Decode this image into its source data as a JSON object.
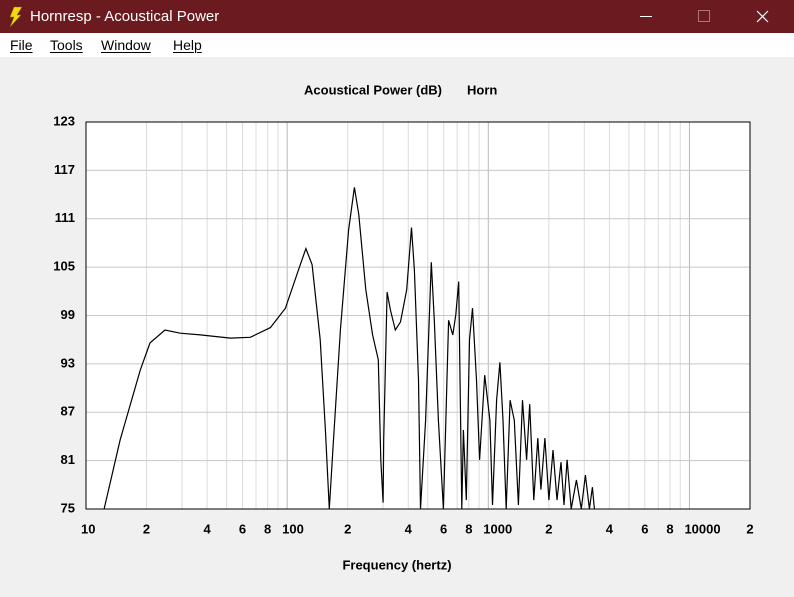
{
  "window": {
    "title": "Hornresp - Acoustical Power",
    "menu": [
      "File",
      "Tools",
      "Window",
      "Help"
    ]
  },
  "chart_data": {
    "type": "line",
    "title": "Acoustical Power (dB)",
    "subtitle": "Horn",
    "x_label": "Frequency (hertz)",
    "x_scale": "log",
    "grid": true,
    "color": "#000000",
    "xlim": [
      10,
      20000
    ],
    "ylim": [
      75,
      123
    ],
    "xticks": [
      10,
      {
        "value": 20,
        "label": "2"
      },
      {
        "value": 40,
        "label": "4"
      },
      {
        "value": 60,
        "label": "6"
      },
      {
        "value": 80,
        "label": "8"
      },
      100,
      {
        "value": 200,
        "label": "2"
      },
      {
        "value": 400,
        "label": "4"
      },
      {
        "value": 600,
        "label": "6"
      },
      {
        "value": 800,
        "label": "8"
      },
      1000,
      {
        "value": 2000,
        "label": "2"
      },
      {
        "value": 4000,
        "label": "4"
      },
      {
        "value": 6000,
        "label": "6"
      },
      {
        "value": 8000,
        "label": "8"
      },
      10000,
      {
        "value": 20000,
        "label": "2"
      }
    ],
    "xminor": [
      30,
      50,
      70,
      90,
      300,
      500,
      700,
      900,
      3000,
      5000,
      7000,
      9000
    ],
    "yticks": [
      75,
      81,
      87,
      93,
      99,
      105,
      111,
      117,
      123
    ],
    "x": [
      12.3,
      14.8,
      18.6,
      20.8,
      24.7,
      29.4,
      37,
      52.2,
      65.6,
      82.6,
      98,
      113.6,
      124,
      133,
      146,
      155,
      162,
      170,
      184,
      202,
      216,
      227,
      246,
      266,
      284,
      292,
      300,
      302,
      314,
      326,
      345,
      366,
      393,
      415,
      429,
      450,
      460,
      488,
      521,
      539,
      565,
      598,
      635,
      666,
      689,
      713,
      738,
      752,
      777,
      806,
      835,
      874,
      905,
      960,
      1018,
      1049,
      1100,
      1142,
      1183,
      1227,
      1284,
      1347,
      1411,
      1480,
      1550,
      1606,
      1683,
      1762,
      1825,
      1912,
      2002,
      2098,
      2196,
      2299,
      2380,
      2466,
      2583,
      2740,
      2900,
      3038,
      3182,
      3292,
      3370
    ],
    "values": [
      75,
      83.6,
      92.2,
      95.6,
      97.2,
      96.8,
      96.6,
      96.2,
      96.3,
      97.5,
      99.9,
      104.6,
      107.3,
      105.3,
      96,
      84.8,
      75,
      83.6,
      97.2,
      109.6,
      114.9,
      111.5,
      102.2,
      96.6,
      93.5,
      81.1,
      75.8,
      83.6,
      101.9,
      99.7,
      97.2,
      98.2,
      102.2,
      109.9,
      104.6,
      91,
      75,
      86,
      105.6,
      98.4,
      86,
      75,
      98.4,
      96.6,
      99.1,
      103.2,
      75,
      84.8,
      76.1,
      96,
      99.9,
      91,
      81.1,
      91.6,
      86,
      75.5,
      88.5,
      93.2,
      86,
      75,
      88.5,
      86,
      75.5,
      88.5,
      81.1,
      88,
      76.1,
      83.8,
      77.4,
      83.8,
      76.1,
      82.3,
      76.1,
      80.8,
      75.5,
      81.1,
      75,
      78.6,
      75,
      79.2,
      75,
      77.7,
      75
    ]
  }
}
